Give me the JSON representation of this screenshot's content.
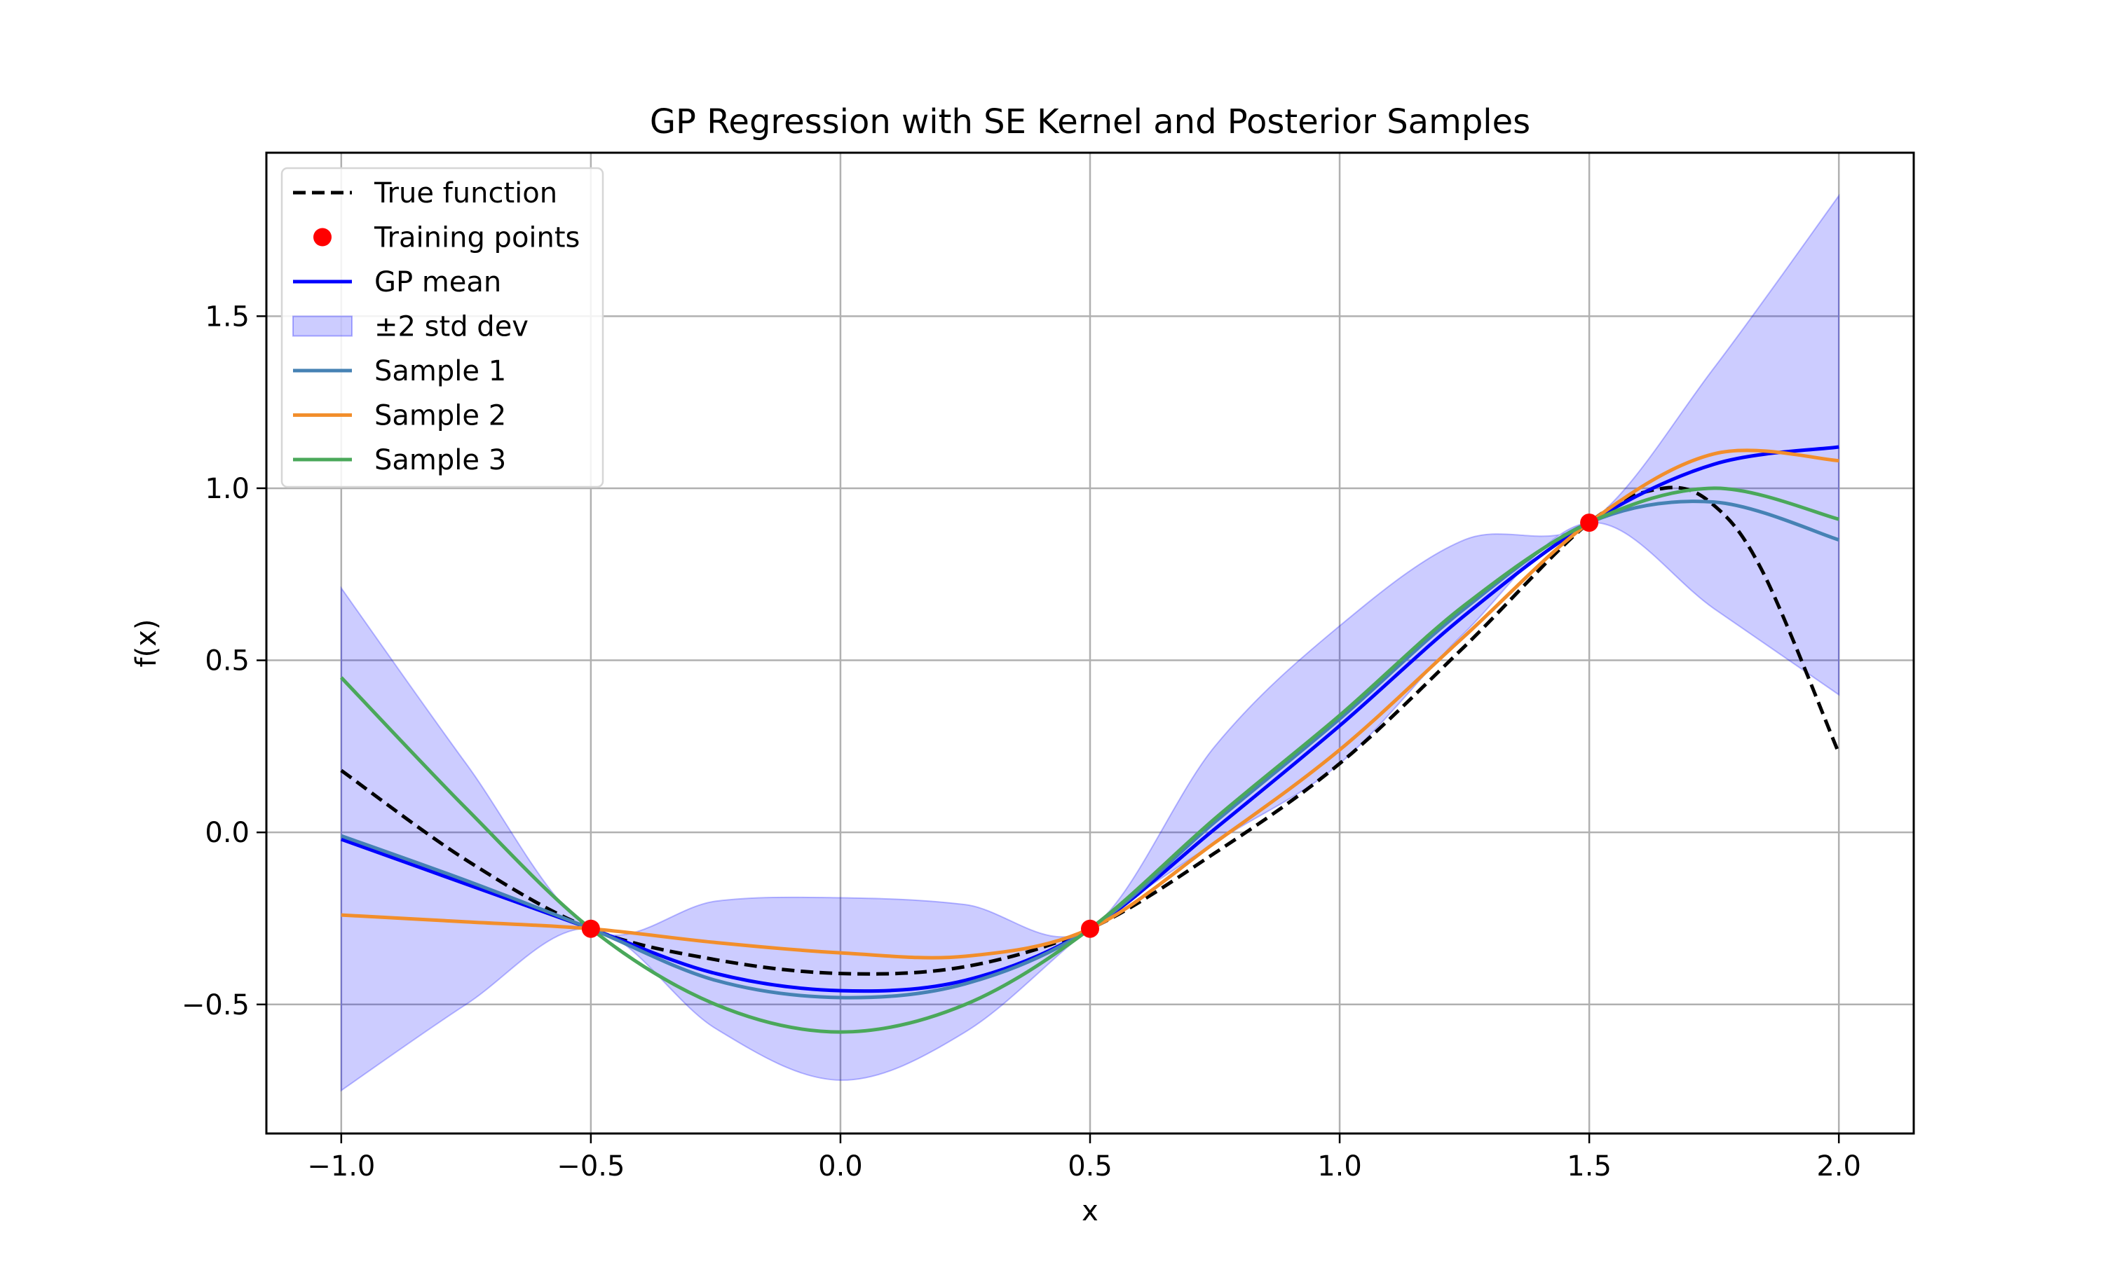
{
  "chart_data": {
    "type": "line",
    "title": "GP Regression with SE Kernel and Posterior Samples",
    "xlabel": "x",
    "ylabel": "f(x)",
    "xlim": [
      -1.15,
      2.15
    ],
    "ylim": [
      -0.875,
      1.975
    ],
    "grid": true,
    "legend_position": "top-left",
    "x_ticks": [
      -1.0,
      -0.5,
      0.0,
      0.5,
      1.0,
      1.5,
      2.0
    ],
    "x_tick_labels": [
      "−1.0",
      "−0.5",
      "0.0",
      "0.5",
      "1.0",
      "1.5",
      "2.0"
    ],
    "y_ticks": [
      -0.5,
      0.0,
      0.5,
      1.0,
      1.5
    ],
    "y_tick_labels": [
      "−0.5",
      "0.0",
      "0.5",
      "1.0",
      "1.5"
    ],
    "x": [
      -1.0,
      -0.75,
      -0.5,
      -0.25,
      0.0,
      0.25,
      0.5,
      0.75,
      1.0,
      1.25,
      1.5,
      1.75,
      2.0
    ],
    "band": {
      "name": "±2 std dev",
      "color": "#0000ff",
      "lower": [
        -0.75,
        -0.5,
        -0.28,
        -0.57,
        -0.72,
        -0.58,
        -0.28,
        -0.03,
        0.2,
        0.58,
        0.9,
        0.65,
        0.4
      ],
      "upper": [
        0.71,
        0.2,
        -0.28,
        -0.2,
        -0.19,
        -0.21,
        -0.28,
        0.25,
        0.6,
        0.85,
        0.9,
        1.35,
        1.85
      ]
    },
    "series": [
      {
        "name": "True function",
        "color": "#000000",
        "style": "dashed",
        "x": [
          -1.0,
          -0.75,
          -0.5,
          -0.25,
          0.0,
          0.25,
          0.5,
          0.75,
          1.0,
          1.25,
          1.5,
          1.65,
          1.75,
          1.85,
          2.0
        ],
        "values": [
          0.18,
          -0.08,
          -0.28,
          -0.37,
          -0.41,
          -0.39,
          -0.28,
          -0.06,
          0.2,
          0.54,
          0.9,
          1.0,
          0.95,
          0.75,
          0.23
        ]
      },
      {
        "name": "GP mean",
        "color": "#0000ff",
        "style": "solid",
        "x": [
          -1.0,
          -0.75,
          -0.5,
          -0.25,
          0.0,
          0.25,
          0.5,
          0.75,
          1.0,
          1.25,
          1.5,
          1.75,
          2.0
        ],
        "values": [
          -0.02,
          -0.15,
          -0.28,
          -0.41,
          -0.46,
          -0.43,
          -0.28,
          0.01,
          0.31,
          0.63,
          0.9,
          1.07,
          1.12
        ]
      },
      {
        "name": "Sample 1",
        "color": "#4682b4",
        "style": "solid",
        "x": [
          -1.0,
          -0.75,
          -0.5,
          -0.25,
          0.0,
          0.25,
          0.5,
          0.75,
          1.0,
          1.25,
          1.5,
          1.75,
          2.0
        ],
        "values": [
          -0.01,
          -0.14,
          -0.28,
          -0.43,
          -0.48,
          -0.44,
          -0.28,
          0.03,
          0.33,
          0.65,
          0.9,
          0.96,
          0.85
        ]
      },
      {
        "name": "Sample 2",
        "color": "#f28e2b",
        "style": "solid",
        "x": [
          -1.0,
          -0.75,
          -0.5,
          -0.25,
          0.0,
          0.25,
          0.5,
          0.75,
          1.0,
          1.25,
          1.5,
          1.75,
          2.0
        ],
        "values": [
          -0.24,
          -0.26,
          -0.28,
          -0.32,
          -0.35,
          -0.36,
          -0.28,
          -0.03,
          0.24,
          0.57,
          0.9,
          1.1,
          1.08
        ]
      },
      {
        "name": "Sample 3",
        "color": "#4aa85a",
        "style": "solid",
        "x": [
          -1.0,
          -0.75,
          -0.5,
          -0.25,
          0.0,
          0.25,
          0.5,
          0.75,
          1.0,
          1.25,
          1.5,
          1.75,
          2.0
        ],
        "values": [
          0.45,
          0.07,
          -0.28,
          -0.5,
          -0.58,
          -0.5,
          -0.28,
          0.04,
          0.34,
          0.66,
          0.9,
          1.0,
          0.91
        ]
      }
    ],
    "training_points": {
      "name": "Training points",
      "color": "#ff0000",
      "x": [
        -0.5,
        0.5,
        1.5
      ],
      "y": [
        -0.28,
        -0.28,
        0.9
      ]
    },
    "legend": [
      {
        "label": "True function",
        "kind": "dashed-line",
        "color": "#000000"
      },
      {
        "label": "Training points",
        "kind": "marker",
        "color": "#ff0000"
      },
      {
        "label": "GP mean",
        "kind": "line",
        "color": "#0000ff"
      },
      {
        "label": "±2 std dev",
        "kind": "patch",
        "color": "#0000ff"
      },
      {
        "label": "Sample 1",
        "kind": "line",
        "color": "#4682b4"
      },
      {
        "label": "Sample 2",
        "kind": "line",
        "color": "#f28e2b"
      },
      {
        "label": "Sample 3",
        "kind": "line",
        "color": "#4aa85a"
      }
    ]
  }
}
